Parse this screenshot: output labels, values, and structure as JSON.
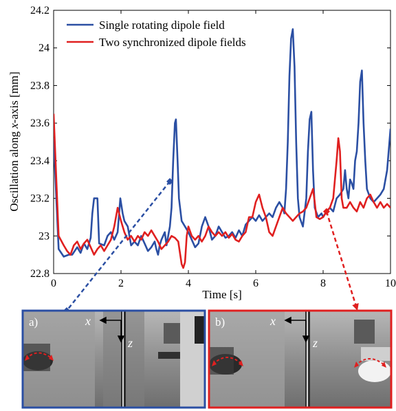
{
  "chart_data": {
    "type": "line",
    "xlabel": "Time [s]",
    "ylabel_prefix": "Oscillation along ",
    "ylabel_var": "x",
    "ylabel_suffix": "-axis [mm]",
    "xlim": [
      0,
      10
    ],
    "ylim": [
      22.8,
      24.2
    ],
    "xticks": [
      "0",
      "2",
      "4",
      "6",
      "8",
      "10"
    ],
    "yticks": [
      "22.8",
      "23",
      "23.2",
      "23.4",
      "23.6",
      "23.8",
      "24",
      "24.2"
    ],
    "grid": false,
    "legend_position": "top-left",
    "series": [
      {
        "name": "Single rotating dipole field",
        "color": "#2b4fa3",
        "points": [
          [
            0,
            23.52
          ],
          [
            0.08,
            23.2
          ],
          [
            0.15,
            22.93
          ],
          [
            0.3,
            22.89
          ],
          [
            0.45,
            22.9
          ],
          [
            0.55,
            22.9
          ],
          [
            0.7,
            22.94
          ],
          [
            0.8,
            22.91
          ],
          [
            0.9,
            22.96
          ],
          [
            1.0,
            22.93
          ],
          [
            1.1,
            22.99
          ],
          [
            1.15,
            23.12
          ],
          [
            1.2,
            23.2
          ],
          [
            1.3,
            23.2
          ],
          [
            1.35,
            22.96
          ],
          [
            1.5,
            22.95
          ],
          [
            1.6,
            23.0
          ],
          [
            1.7,
            23.02
          ],
          [
            1.8,
            22.98
          ],
          [
            1.9,
            23.02
          ],
          [
            1.98,
            23.2
          ],
          [
            2.05,
            23.12
          ],
          [
            2.1,
            23.08
          ],
          [
            2.2,
            23.05
          ],
          [
            2.3,
            22.95
          ],
          [
            2.4,
            22.97
          ],
          [
            2.5,
            22.95
          ],
          [
            2.6,
            23.0
          ],
          [
            2.7,
            22.96
          ],
          [
            2.8,
            22.92
          ],
          [
            2.9,
            22.94
          ],
          [
            3.0,
            22.97
          ],
          [
            3.05,
            22.93
          ],
          [
            3.1,
            22.9
          ],
          [
            3.15,
            22.95
          ],
          [
            3.2,
            22.98
          ],
          [
            3.3,
            23.02
          ],
          [
            3.35,
            22.95
          ],
          [
            3.4,
            23.0
          ],
          [
            3.45,
            23.05
          ],
          [
            3.5,
            23.15
          ],
          [
            3.55,
            23.4
          ],
          [
            3.6,
            23.6
          ],
          [
            3.63,
            23.62
          ],
          [
            3.68,
            23.4
          ],
          [
            3.72,
            23.2
          ],
          [
            3.8,
            23.08
          ],
          [
            3.9,
            23.05
          ],
          [
            4.0,
            23.02
          ],
          [
            4.1,
            22.98
          ],
          [
            4.2,
            22.94
          ],
          [
            4.3,
            22.96
          ],
          [
            4.4,
            23.05
          ],
          [
            4.5,
            23.1
          ],
          [
            4.6,
            23.05
          ],
          [
            4.7,
            22.98
          ],
          [
            4.8,
            23.0
          ],
          [
            4.9,
            23.05
          ],
          [
            5.0,
            23.02
          ],
          [
            5.1,
            22.99
          ],
          [
            5.2,
            23.0
          ],
          [
            5.3,
            23.02
          ],
          [
            5.4,
            22.99
          ],
          [
            5.5,
            23.03
          ],
          [
            5.6,
            23.0
          ],
          [
            5.7,
            23.06
          ],
          [
            5.8,
            23.08
          ],
          [
            5.9,
            23.1
          ],
          [
            6.0,
            23.08
          ],
          [
            6.1,
            23.11
          ],
          [
            6.2,
            23.08
          ],
          [
            6.3,
            23.1
          ],
          [
            6.4,
            23.12
          ],
          [
            6.5,
            23.1
          ],
          [
            6.6,
            23.15
          ],
          [
            6.7,
            23.18
          ],
          [
            6.8,
            23.15
          ],
          [
            6.85,
            23.12
          ],
          [
            6.9,
            23.25
          ],
          [
            6.95,
            23.5
          ],
          [
            7.0,
            23.85
          ],
          [
            7.05,
            24.05
          ],
          [
            7.1,
            24.1
          ],
          [
            7.15,
            23.9
          ],
          [
            7.2,
            23.5
          ],
          [
            7.25,
            23.2
          ],
          [
            7.3,
            23.1
          ],
          [
            7.4,
            23.05
          ],
          [
            7.5,
            23.2
          ],
          [
            7.55,
            23.45
          ],
          [
            7.6,
            23.62
          ],
          [
            7.65,
            23.66
          ],
          [
            7.7,
            23.35
          ],
          [
            7.75,
            23.15
          ],
          [
            7.85,
            23.1
          ],
          [
            7.95,
            23.12
          ],
          [
            8.0,
            23.1
          ],
          [
            8.1,
            23.13
          ],
          [
            8.2,
            23.15
          ],
          [
            8.3,
            23.13
          ],
          [
            8.4,
            23.2
          ],
          [
            8.5,
            23.22
          ],
          [
            8.6,
            23.25
          ],
          [
            8.65,
            23.35
          ],
          [
            8.7,
            23.25
          ],
          [
            8.75,
            23.2
          ],
          [
            8.8,
            23.3
          ],
          [
            8.85,
            23.28
          ],
          [
            8.9,
            23.25
          ],
          [
            8.95,
            23.4
          ],
          [
            9.0,
            23.45
          ],
          [
            9.05,
            23.6
          ],
          [
            9.1,
            23.82
          ],
          [
            9.15,
            23.88
          ],
          [
            9.2,
            23.6
          ],
          [
            9.25,
            23.4
          ],
          [
            9.3,
            23.25
          ],
          [
            9.4,
            23.2
          ],
          [
            9.5,
            23.18
          ],
          [
            9.6,
            23.2
          ],
          [
            9.7,
            23.22
          ],
          [
            9.8,
            23.25
          ],
          [
            9.9,
            23.35
          ],
          [
            10.0,
            23.57
          ]
        ]
      },
      {
        "name": "Two synchronized dipole fields",
        "color": "#e02020",
        "points": [
          [
            0,
            23.65
          ],
          [
            0.08,
            23.3
          ],
          [
            0.15,
            23.0
          ],
          [
            0.3,
            22.95
          ],
          [
            0.4,
            22.92
          ],
          [
            0.5,
            22.9
          ],
          [
            0.6,
            22.95
          ],
          [
            0.7,
            22.97
          ],
          [
            0.8,
            22.93
          ],
          [
            0.9,
            22.96
          ],
          [
            1.0,
            22.98
          ],
          [
            1.1,
            22.94
          ],
          [
            1.2,
            22.9
          ],
          [
            1.3,
            22.93
          ],
          [
            1.4,
            22.95
          ],
          [
            1.5,
            22.92
          ],
          [
            1.6,
            22.95
          ],
          [
            1.7,
            22.98
          ],
          [
            1.8,
            23.05
          ],
          [
            1.9,
            23.15
          ],
          [
            2.0,
            23.08
          ],
          [
            2.1,
            23.02
          ],
          [
            2.2,
            22.98
          ],
          [
            2.3,
            23.0
          ],
          [
            2.4,
            22.97
          ],
          [
            2.5,
            23.0
          ],
          [
            2.6,
            22.98
          ],
          [
            2.7,
            23.02
          ],
          [
            2.8,
            23.0
          ],
          [
            2.9,
            23.03
          ],
          [
            3.0,
            23.0
          ],
          [
            3.1,
            22.97
          ],
          [
            3.2,
            22.93
          ],
          [
            3.3,
            22.95
          ],
          [
            3.4,
            22.97
          ],
          [
            3.5,
            23.0
          ],
          [
            3.6,
            22.99
          ],
          [
            3.7,
            22.97
          ],
          [
            3.8,
            22.85
          ],
          [
            3.85,
            22.83
          ],
          [
            3.9,
            22.86
          ],
          [
            3.95,
            23.0
          ],
          [
            4.0,
            23.05
          ],
          [
            4.1,
            23.0
          ],
          [
            4.2,
            22.98
          ],
          [
            4.3,
            23.0
          ],
          [
            4.4,
            22.97
          ],
          [
            4.5,
            23.0
          ],
          [
            4.6,
            23.05
          ],
          [
            4.7,
            23.02
          ],
          [
            4.8,
            23.0
          ],
          [
            4.9,
            23.02
          ],
          [
            5.0,
            23.0
          ],
          [
            5.1,
            23.02
          ],
          [
            5.2,
            22.99
          ],
          [
            5.3,
            23.01
          ],
          [
            5.4,
            22.98
          ],
          [
            5.5,
            22.97
          ],
          [
            5.6,
            23.0
          ],
          [
            5.7,
            23.02
          ],
          [
            5.8,
            23.1
          ],
          [
            5.9,
            23.1
          ],
          [
            6.0,
            23.18
          ],
          [
            6.1,
            23.22
          ],
          [
            6.2,
            23.15
          ],
          [
            6.3,
            23.1
          ],
          [
            6.4,
            23.02
          ],
          [
            6.5,
            23.0
          ],
          [
            6.6,
            23.05
          ],
          [
            6.7,
            23.1
          ],
          [
            6.8,
            23.15
          ],
          [
            6.9,
            23.12
          ],
          [
            7.0,
            23.1
          ],
          [
            7.1,
            23.08
          ],
          [
            7.2,
            23.1
          ],
          [
            7.3,
            23.12
          ],
          [
            7.4,
            23.13
          ],
          [
            7.5,
            23.15
          ],
          [
            7.6,
            23.2
          ],
          [
            7.7,
            23.25
          ],
          [
            7.75,
            23.18
          ],
          [
            7.8,
            23.1
          ],
          [
            7.9,
            23.09
          ],
          [
            8.0,
            23.1
          ],
          [
            8.1,
            23.13
          ],
          [
            8.2,
            23.15
          ],
          [
            8.3,
            23.2
          ],
          [
            8.4,
            23.4
          ],
          [
            8.45,
            23.52
          ],
          [
            8.5,
            23.45
          ],
          [
            8.55,
            23.2
          ],
          [
            8.6,
            23.15
          ],
          [
            8.7,
            23.15
          ],
          [
            8.8,
            23.18
          ],
          [
            8.9,
            23.15
          ],
          [
            9.0,
            23.13
          ],
          [
            9.1,
            23.18
          ],
          [
            9.2,
            23.15
          ],
          [
            9.3,
            23.2
          ],
          [
            9.4,
            23.22
          ],
          [
            9.5,
            23.18
          ],
          [
            9.6,
            23.15
          ],
          [
            9.7,
            23.18
          ],
          [
            9.8,
            23.15
          ],
          [
            9.9,
            23.17
          ],
          [
            10.0,
            23.15
          ]
        ]
      }
    ],
    "callouts": [
      {
        "point": [
          3.45,
          23.29
        ],
        "color": "#2b4fa3",
        "target": "a"
      },
      {
        "point": [
          8.1,
          23.13
        ],
        "color": "#e02020",
        "target": "b"
      }
    ]
  },
  "insets": [
    {
      "label": "a)",
      "border_color": "#2b4fa3",
      "axis_x": "x",
      "axis_z": "z"
    },
    {
      "label": "b)",
      "border_color": "#e02020",
      "axis_x": "x",
      "axis_z": "z"
    }
  ]
}
